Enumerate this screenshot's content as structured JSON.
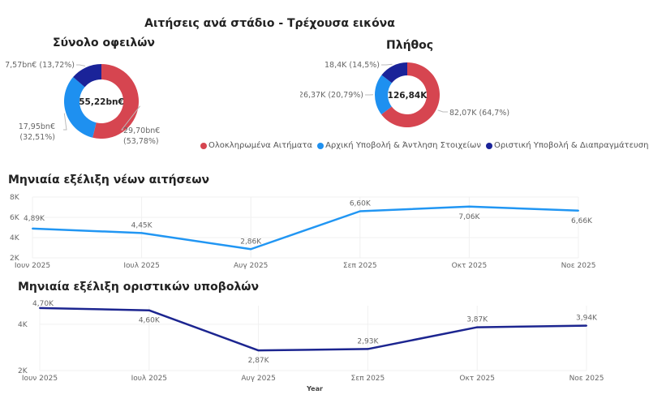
{
  "header": {
    "title": "Αιτήσεις ανά στάδιο - Τρέχουσα εικόνα"
  },
  "colors": {
    "completed": "#D64550",
    "initial": "#1E90F0",
    "final": "#1A2399",
    "line_new": "#2196F3",
    "line_final": "#1C2590"
  },
  "legend": [
    {
      "label": "Ολοκληρωμένα Αιτήματα",
      "color": "#D64550"
    },
    {
      "label": "Αρχική Υποβολή & Άντληση Στοιχείων",
      "color": "#1E90F0"
    },
    {
      "label": "Οριστική Υποβολή & Διαπραγμάτευση",
      "color": "#1A2399"
    }
  ],
  "chart_data": [
    {
      "type": "pie",
      "title": "Σύνολο οφειλών",
      "center_label": "55,22bn€",
      "categories": [
        "Ολοκληρωμένα Αιτήματα",
        "Αρχική Υποβολή & Άντληση Στοιχείων",
        "Οριστική Υποβολή & Διαπραγμάτευση"
      ],
      "values": [
        29.7,
        17.95,
        7.57
      ],
      "percents": [
        53.78,
        32.51,
        13.72
      ],
      "data_labels": [
        [
          "29,70bn€",
          "(53,78%)"
        ],
        [
          "17,95bn€",
          "(32,51%)"
        ],
        [
          "7,57bn€ (13,72%)"
        ]
      ],
      "legend": "bottom"
    },
    {
      "type": "pie",
      "title": "Πλήθος",
      "center_label": "126,84K",
      "categories": [
        "Ολοκληρωμένα Αιτήματα",
        "Αρχική Υποβολή & Άντληση Στοιχείων",
        "Οριστική Υποβολή & Διαπραγμάτευση"
      ],
      "values": [
        82.07,
        26.37,
        18.4
      ],
      "percents": [
        64.7,
        20.79,
        14.5
      ],
      "data_labels": [
        [
          "82,07K (64,7%)"
        ],
        [
          "26,37K (20,79%)"
        ],
        [
          "18,4K (14,5%)"
        ]
      ],
      "legend": "bottom"
    },
    {
      "type": "line",
      "title": "Μηνιαία εξέλιξη νέων αιτήσεων",
      "categories": [
        "Ιουν 2025",
        "Ιουλ 2025",
        "Αυγ 2025",
        "Σεπ 2025",
        "Οκτ 2025",
        "Νοε 2025"
      ],
      "values": [
        4.89,
        4.45,
        2.86,
        6.6,
        7.06,
        6.66
      ],
      "data_labels": [
        "4,89K",
        "4,45K",
        "2,86K",
        "6,60K",
        "7,06K",
        "6,66K"
      ],
      "yticks": [
        "2K",
        "4K",
        "6K",
        "8K"
      ],
      "ylim": [
        2,
        8
      ],
      "grid": true
    },
    {
      "type": "line",
      "title": "Μηνιαία εξέλιξη οριστικών υποβολών",
      "xlabel": "Year",
      "categories": [
        "Ιουν 2025",
        "Ιουλ 2025",
        "Αυγ 2025",
        "Σεπ 2025",
        "Οκτ 2025",
        "Νοε 2025"
      ],
      "values": [
        4.7,
        4.6,
        2.87,
        2.93,
        3.87,
        3.94
      ],
      "data_labels": [
        "4,70K",
        "4,60K",
        "2,87K",
        "2,93K",
        "3,87K",
        "3,94K"
      ],
      "yticks": [
        "2K",
        "4K"
      ],
      "ylim": [
        2,
        4.8
      ],
      "grid": true
    }
  ]
}
